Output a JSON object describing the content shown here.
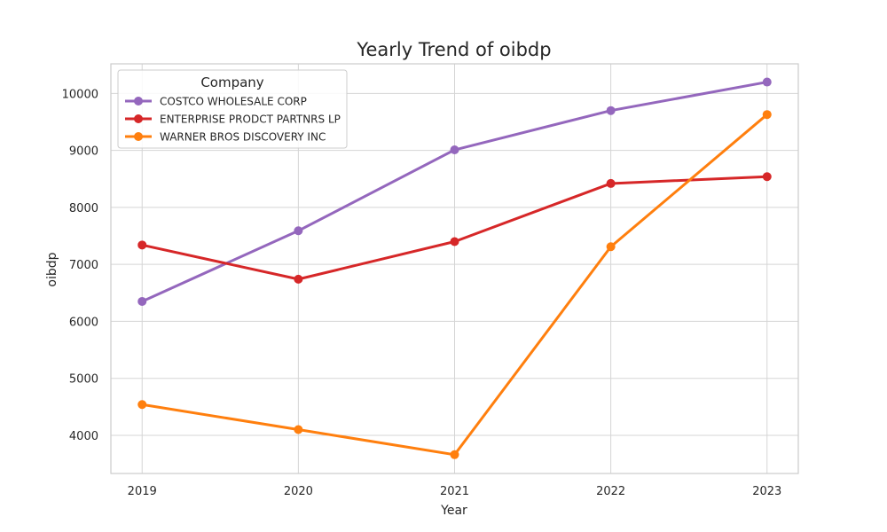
{
  "chart_data": {
    "type": "line",
    "title": "Yearly Trend of oibdp",
    "xlabel": "Year",
    "ylabel": "oibdp",
    "x": [
      2019,
      2020,
      2021,
      2022,
      2023
    ],
    "x_tick_labels": [
      "2019",
      "2020",
      "2021",
      "2022",
      "2023"
    ],
    "y_ticks": [
      4000,
      5000,
      6000,
      7000,
      8000,
      9000,
      10000
    ],
    "y_tick_labels": [
      "4000",
      "5000",
      "6000",
      "7000",
      "8000",
      "9000",
      "10000"
    ],
    "xlim": [
      2018.8,
      2023.2
    ],
    "ylim": [
      3330,
      10520
    ],
    "grid": true,
    "legend": {
      "title": "Company",
      "placement": "top-left"
    },
    "series": [
      {
        "name": "COSTCO WHOLESALE CORP",
        "color": "#9467bd",
        "values": [
          6350,
          7590,
          9010,
          9700,
          10200
        ]
      },
      {
        "name": "ENTERPRISE PRODCT PARTNRS LP",
        "color": "#d62728",
        "values": [
          7340,
          6740,
          7400,
          8420,
          8540
        ]
      },
      {
        "name": "WARNER BROS DISCOVERY INC",
        "color": "#ff7f0e",
        "values": [
          4540,
          4100,
          3660,
          7310,
          9630
        ]
      }
    ]
  }
}
